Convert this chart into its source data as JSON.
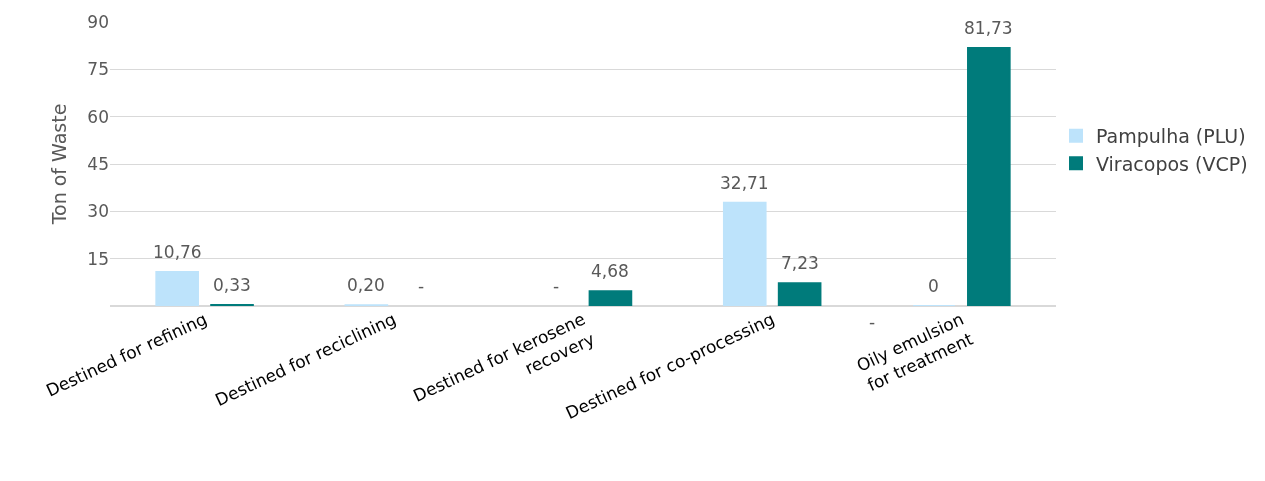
{
  "chart_data": {
    "type": "bar",
    "ylabel": "Ton of Waste",
    "categories": [
      "Destined for refining",
      "Destined for reciclining",
      "Destined for kerosene\nrecovery",
      "Destined for co-processing",
      "Oily emulsion\nfor treatment"
    ],
    "series": [
      {
        "name": "Pampulha (PLU)",
        "color": "#bde3fb",
        "values": [
          10.76,
          0.2,
          null,
          32.71,
          0
        ],
        "value_labels": [
          "10,76",
          "0,20",
          "-",
          "32,71",
          "0"
        ]
      },
      {
        "name": "Viracopos (VCP)",
        "color": "#007b7b",
        "values": [
          0.33,
          null,
          4.68,
          7.23,
          81.73
        ],
        "value_labels": [
          "0,33",
          "-",
          "4,68",
          "7,23",
          "81,73"
        ]
      }
    ],
    "ylim": [
      0,
      90
    ],
    "yticks": [
      {
        "value": 0,
        "label": null
      },
      15,
      30,
      45,
      60,
      75,
      90
    ],
    "grid": "y",
    "legend": "right",
    "annotations": [
      "-"
    ]
  }
}
